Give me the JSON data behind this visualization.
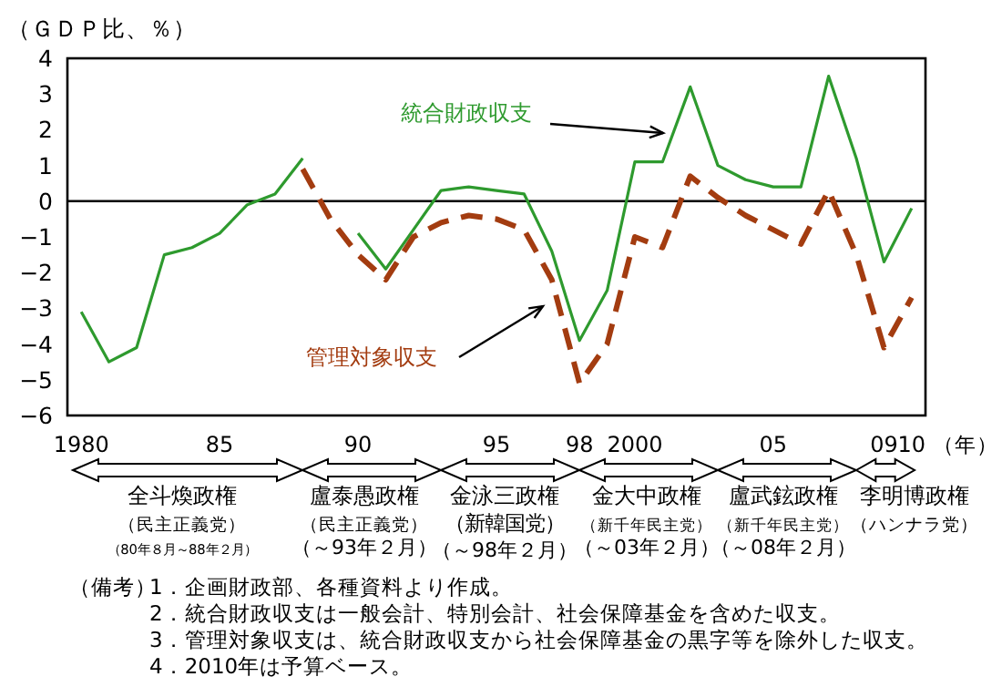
{
  "chart_data": {
    "type": "line",
    "ylabel": "（ＧＤＰ比、％）",
    "xlabel": "（年）",
    "x": [
      1980,
      1981,
      1982,
      1983,
      1984,
      1985,
      1986,
      1987,
      1988,
      1989,
      1990,
      1991,
      1992,
      1993,
      1994,
      1995,
      1996,
      1997,
      1998,
      1999,
      2000,
      2001,
      2002,
      2003,
      2004,
      2005,
      2006,
      2007,
      2008,
      2009,
      2010
    ],
    "series": [
      {
        "name": "統合財政収支",
        "color": "#2e9a2e",
        "line_style": "solid",
        "values": [
          -3.1,
          -4.5,
          -4.1,
          -1.5,
          -1.3,
          -0.9,
          -0.1,
          0.2,
          1.2,
          null,
          -0.9,
          -1.9,
          -0.8,
          0.3,
          0.4,
          0.3,
          0.2,
          -1.4,
          -3.9,
          -2.5,
          1.1,
          1.1,
          3.2,
          1.0,
          0.6,
          0.4,
          0.4,
          3.5,
          1.2,
          -1.7,
          -0.2
        ]
      },
      {
        "name": "管理対象収支",
        "color": "#a33c10",
        "line_style": "dashed",
        "values": [
          null,
          null,
          null,
          null,
          null,
          null,
          null,
          null,
          0.9,
          -0.5,
          -1.5,
          -2.2,
          -1.0,
          -0.6,
          -0.4,
          -0.5,
          -0.8,
          -2.2,
          -5.1,
          -4.0,
          -1.0,
          -1.3,
          0.7,
          0.1,
          -0.4,
          -0.8,
          -1.2,
          0.3,
          -1.5,
          -4.1,
          -2.7
        ]
      }
    ],
    "xlim": [
      1979.5,
      2010.5
    ],
    "xticks": [
      {
        "value": 1980,
        "label": "1980"
      },
      {
        "value": 1985,
        "label": "85"
      },
      {
        "value": 1990,
        "label": "90"
      },
      {
        "value": 1995,
        "label": "95"
      },
      {
        "value": 1998,
        "label": "98"
      },
      {
        "value": 2000,
        "label": "2000"
      },
      {
        "value": 2005,
        "label": "05"
      },
      {
        "value": 2009,
        "label": "09"
      },
      {
        "value": 2010,
        "label": "10"
      }
    ],
    "ylim": [
      -6,
      4
    ],
    "yticks": [
      -6,
      -5,
      -4,
      -3,
      -2,
      -1,
      0,
      1,
      2,
      3,
      4
    ],
    "ref_lines": [
      {
        "axis": "y",
        "value": 0
      }
    ],
    "annotations": [
      "全斗煥政権",
      "（民主正義党）",
      "（80年８月～88年２月）",
      "盧泰愚政権",
      "（民主正義党）",
      "（～93年２月）",
      "金泳三政権",
      "（新韓国党）",
      "（～98年２月）",
      "金大中政権",
      "（新千年民主党）",
      "（～03年２月）",
      "盧武鉉政権",
      "（新千年民主党）",
      "（～08年２月）",
      "李明博政権",
      "（ハンナラ党）",
      "（備考）",
      "1．企画財政部、各種資料より作成。",
      "2．統合財政収支は一般会計、特別会計、社会保障基金を含めた収支。",
      "3．管理対象収支は、統合財政収支から社会保障基金の黒字等を除外した収支。",
      "4．2010年は予算ベース。"
    ],
    "grid": false,
    "marker": "none"
  }
}
